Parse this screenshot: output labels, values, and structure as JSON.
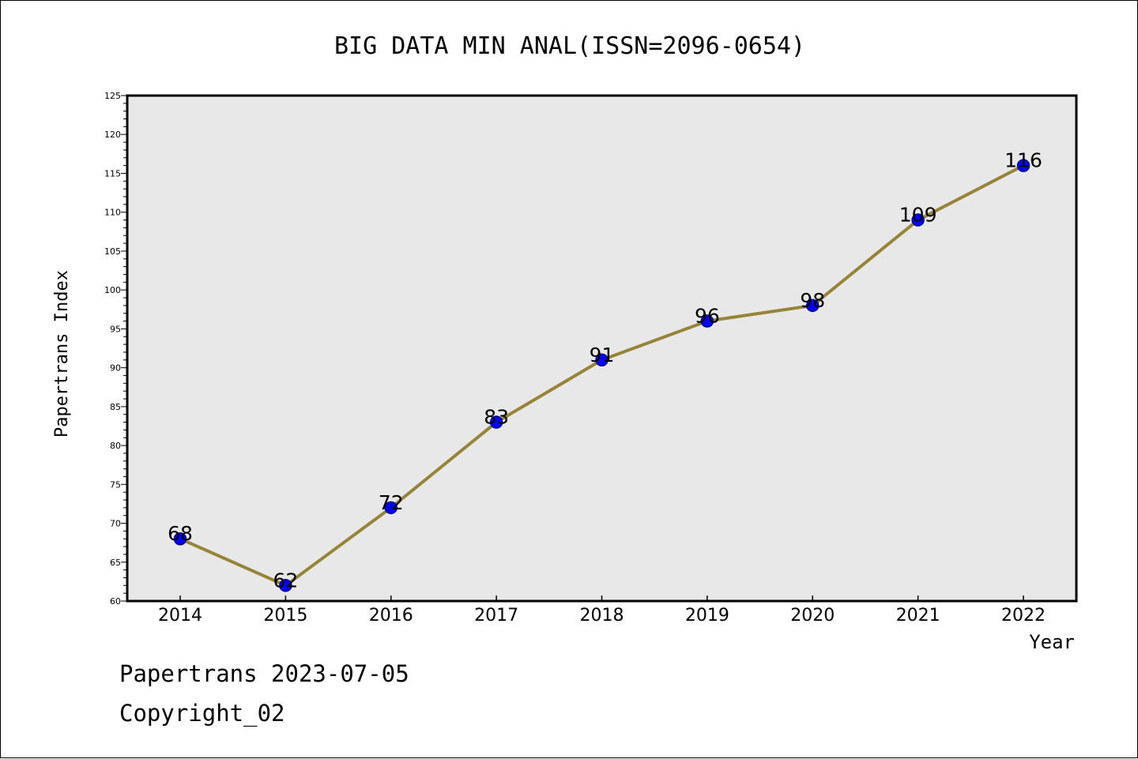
{
  "chart_data": {
    "type": "line",
    "title": "BIG DATA MIN ANAL(ISSN=2096-0654)",
    "xlabel": "Year",
    "ylabel": "Papertrans Index",
    "categories": [
      "2014",
      "2015",
      "2016",
      "2017",
      "2018",
      "2019",
      "2020",
      "2021",
      "2022"
    ],
    "series": [
      {
        "values": [
          68,
          62,
          72,
          83,
          91,
          96,
          98,
          109,
          116
        ]
      }
    ],
    "ylim": [
      60,
      125
    ],
    "ytick_step": 5,
    "yminor_step": 1,
    "grid": false,
    "plot_background": "#e8e8e8",
    "line_color": "#968437",
    "marker_color": "#0000ff",
    "marker_edge_color": "#00008b"
  },
  "footer": {
    "line1": "Papertrans 2023-07-05",
    "line2": "Copyright_02"
  }
}
